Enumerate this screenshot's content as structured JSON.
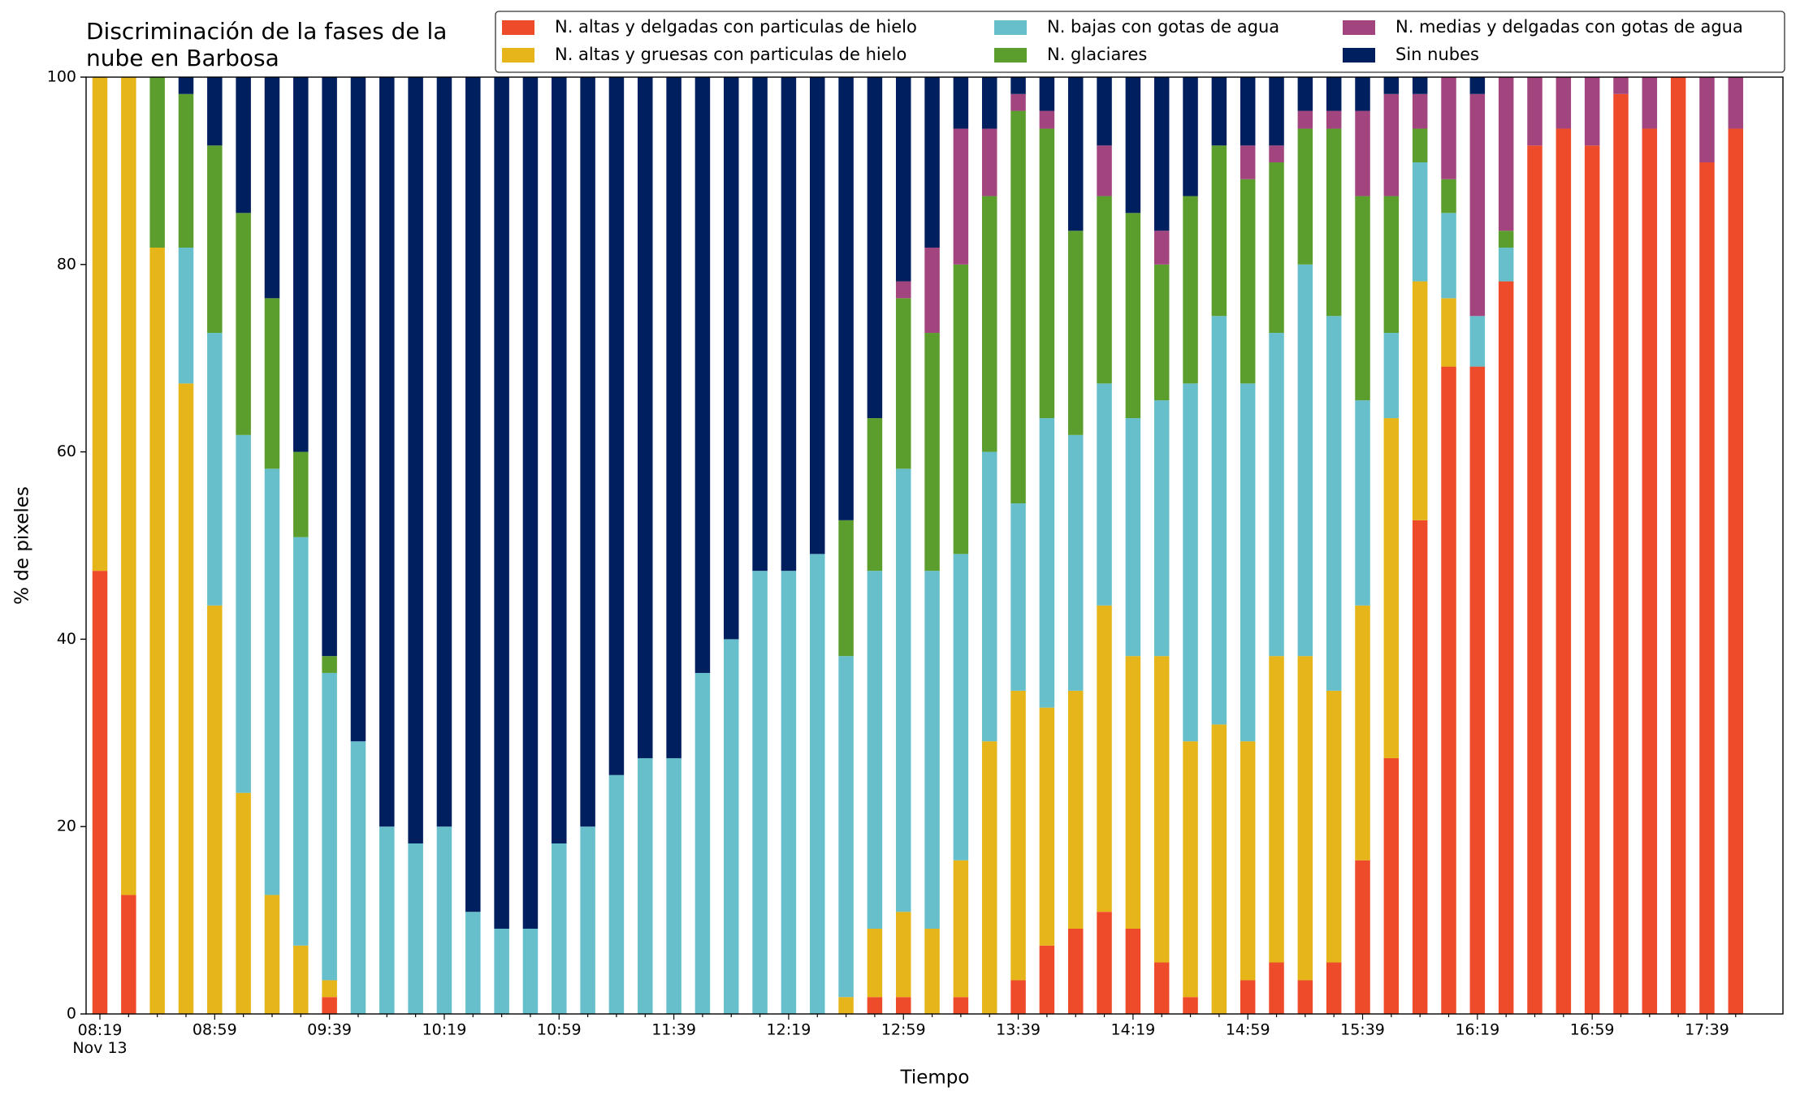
{
  "chart_data": {
    "type": "stacked_bar",
    "title": "Discriminación de la fases de la\nnube en Barbosa",
    "xlabel": "Tiempo",
    "ylabel": "% de pixeles",
    "categories": [
      "08:19\nNov 13",
      null,
      null,
      null,
      "08:59",
      null,
      null,
      null,
      "09:39",
      null,
      null,
      null,
      "10:19",
      null,
      null,
      null,
      "10:59",
      null,
      null,
      null,
      "11:39",
      null,
      null,
      null,
      "12:19",
      null,
      null,
      null,
      "12:59",
      null,
      null,
      null,
      "13:39",
      null,
      null,
      null,
      "14:19",
      null,
      null,
      null,
      "14:59",
      null,
      null,
      null,
      "15:39",
      null,
      null,
      null,
      "16:19",
      null,
      null,
      null,
      "16:59",
      null,
      null,
      null,
      "17:39",
      null
    ],
    "ylim": [
      0,
      100
    ],
    "yticks": [
      0,
      20,
      40,
      60,
      80,
      100
    ],
    "grid": false,
    "legend": "top-right",
    "series": [
      {
        "name": "N. altas y delgadas con particulas de hielo",
        "color": "#ee4b2b",
        "values": [
          47.3,
          12.7,
          0,
          0,
          0,
          0,
          0,
          0,
          1.8,
          0,
          0,
          0,
          0,
          0,
          0,
          0,
          0,
          0,
          0,
          0,
          0,
          0,
          0,
          0,
          0,
          0,
          0,
          1.8,
          1.8,
          0,
          1.8,
          0,
          3.6,
          7.3,
          9.1,
          10.9,
          9.1,
          5.5,
          1.8,
          0,
          3.6,
          5.5,
          3.6,
          5.5,
          16.4,
          27.3,
          52.7,
          69.1,
          69.1,
          78.2,
          92.7,
          94.5,
          92.7,
          98.2,
          94.5,
          100,
          90.9,
          94.5
        ]
      },
      {
        "name": "N. altas y gruesas con particulas de hielo",
        "color": "#e5b519",
        "values": [
          52.7,
          87.3,
          81.8,
          67.3,
          43.6,
          23.6,
          12.7,
          7.3,
          1.8,
          0,
          0,
          0,
          0,
          0,
          0,
          0,
          0,
          0,
          0,
          0,
          0,
          0,
          0,
          0,
          0,
          0,
          1.8,
          7.3,
          9.1,
          9.1,
          14.6,
          29.1,
          30.9,
          25.4,
          25.4,
          32.7,
          29.1,
          32.7,
          27.3,
          30.9,
          25.5,
          32.7,
          34.6,
          29,
          27.2,
          36.3,
          25.5,
          7.3,
          0,
          0,
          0,
          0,
          0,
          0,
          0,
          0,
          0,
          0
        ]
      },
      {
        "name": "N. bajas con gotas de agua",
        "color": "#67bfcc",
        "values": [
          0,
          0,
          0,
          14.5,
          29.1,
          38.2,
          45.5,
          43.6,
          32.8,
          29.1,
          20,
          18.2,
          20,
          10.9,
          9.1,
          9.1,
          18.2,
          20,
          25.5,
          27.3,
          27.3,
          36.4,
          40,
          47.3,
          47.3,
          49.1,
          36.4,
          38.2,
          47.3,
          38.2,
          32.7,
          30.9,
          20,
          30.9,
          27.3,
          23.7,
          25.4,
          27.3,
          38.2,
          43.6,
          38.2,
          34.5,
          41.8,
          40,
          21.9,
          9.1,
          12.7,
          9.1,
          5.4,
          3.6,
          0,
          0,
          0,
          0,
          0,
          0,
          0,
          0
        ]
      },
      {
        "name": "N. glaciares",
        "color": "#5c9e2d",
        "values": [
          0,
          0,
          18.2,
          16.4,
          20,
          23.7,
          18.2,
          9.1,
          1.8,
          0,
          0,
          0,
          0,
          0,
          0,
          0,
          0,
          0,
          0,
          0,
          0,
          0,
          0,
          0,
          0,
          0,
          14.5,
          16.3,
          18.2,
          25.4,
          30.9,
          27.3,
          41.9,
          30.9,
          21.8,
          20,
          21.9,
          14.5,
          20,
          18.2,
          21.8,
          18.2,
          14.5,
          20,
          21.8,
          14.6,
          3.6,
          3.6,
          0,
          1.8,
          0,
          0,
          0,
          0,
          0,
          0,
          0,
          0
        ]
      },
      {
        "name": "N. medias y delgadas con gotas de agua",
        "color": "#a2457f",
        "values": [
          0,
          0,
          0,
          0,
          0,
          0,
          0,
          0,
          0,
          0,
          0,
          0,
          0,
          0,
          0,
          0,
          0,
          0,
          0,
          0,
          0,
          0,
          0,
          0,
          0,
          0,
          0,
          0,
          1.8,
          9.1,
          14.5,
          7.2,
          1.8,
          1.9,
          0,
          5.4,
          0,
          3.6,
          0,
          0,
          3.6,
          1.8,
          1.9,
          1.9,
          9.1,
          10.9,
          3.7,
          10.9,
          23.7,
          16.4,
          7.3,
          5.5,
          7.3,
          1.8,
          5.5,
          0,
          9.1,
          5.5
        ]
      },
      {
        "name": "Sin nubes",
        "color": "#001f5f",
        "values": [
          0,
          0,
          0,
          1.8,
          7.3,
          14.5,
          23.6,
          40,
          61.8,
          70.9,
          80,
          81.8,
          80,
          89.1,
          90.9,
          90.9,
          81.8,
          80,
          74.5,
          72.7,
          72.7,
          63.6,
          60,
          52.7,
          52.7,
          50.9,
          47.3,
          36.4,
          21.8,
          18.2,
          5.5,
          5.5,
          1.8,
          3.6,
          16.4,
          7.3,
          14.5,
          16.4,
          12.7,
          7.3,
          7.3,
          7.3,
          3.6,
          3.6,
          3.6,
          1.8,
          1.8,
          0,
          1.8,
          0,
          0,
          0,
          0,
          0,
          0,
          0,
          0,
          0
        ]
      }
    ]
  }
}
